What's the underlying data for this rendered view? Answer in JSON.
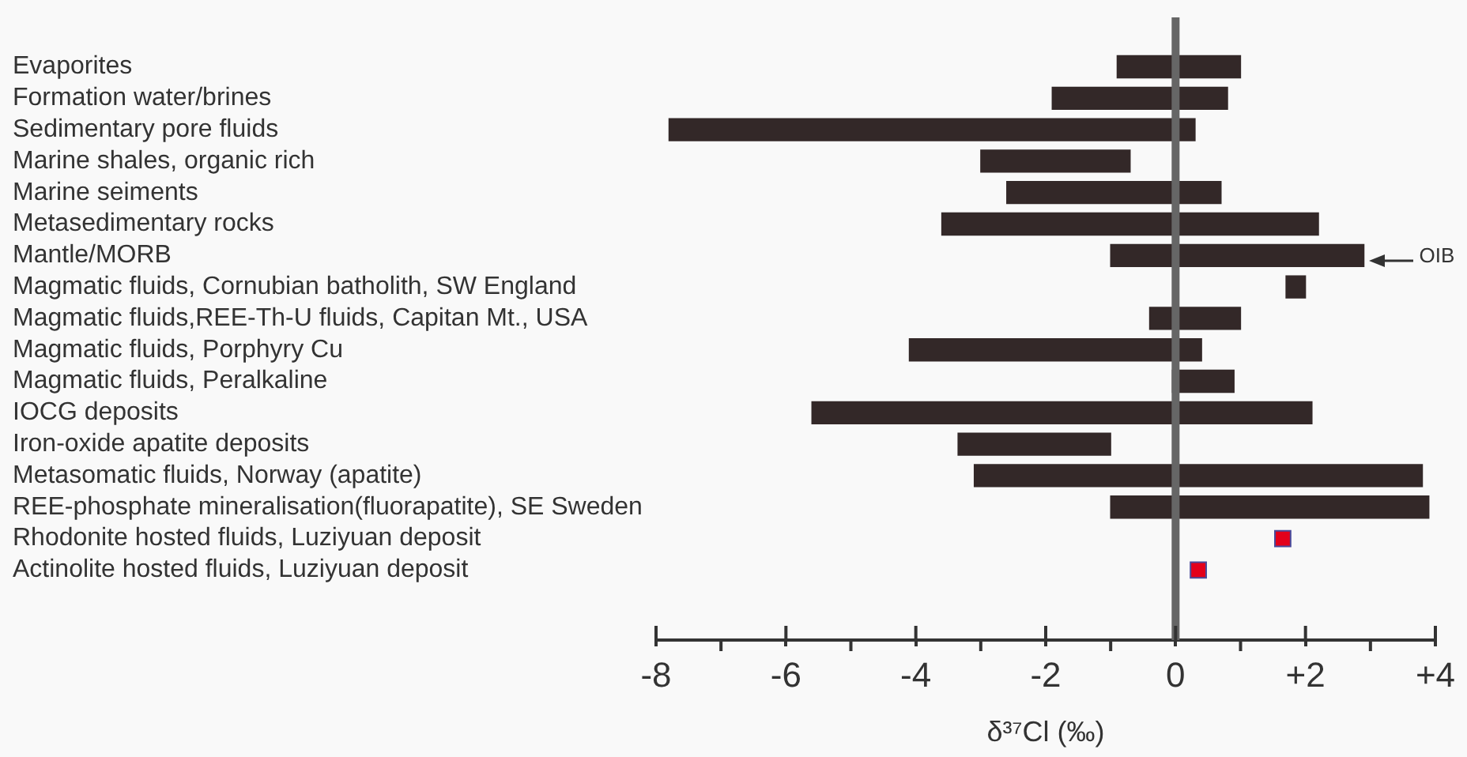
{
  "chart_data": {
    "type": "bar",
    "orientation": "horizontal",
    "xlabel": "δ³⁷Cl (‰)",
    "categories": [
      "Evaporites",
      "Formation water/brines",
      "Sedimentary pore fluids",
      "Marine shales, organic rich",
      "Marine seiments",
      "Metasedimentary rocks",
      "Mantle/MORB",
      "Magmatic fluids, Cornubian batholith, SW England",
      "Magmatic fluids,REE-Th-U fluids, Capitan Mt., USA",
      "Magmatic fluids, Porphyry Cu",
      "Magmatic fluids, Peralkaline",
      "IOCG deposits",
      "Iron-oxide apatite deposits",
      "Metasomatic fluids, Norway (apatite)",
      "REE-phosphate mineralisation(fluorapatite), SE Sweden",
      "Rhodonite hosted fluids, Luziyuan deposit",
      "Actinolite hosted fluids, Luziyuan deposit"
    ],
    "series": [
      {
        "color": "#332828",
        "base": [
          -0.9,
          -1.9,
          -7.8,
          -3.0,
          -2.6,
          -3.6,
          -1.0,
          1.7,
          -0.4,
          -4.1,
          -0.05,
          -5.6,
          -3.35,
          -3.1,
          -1.0,
          null,
          null
        ],
        "values": [
          1.9,
          2.7,
          8.1,
          2.3,
          3.3,
          5.8,
          3.9,
          0.3,
          1.4,
          4.5,
          0.95,
          7.7,
          2.35,
          6.9,
          4.9,
          null,
          null
        ]
      },
      {
        "type": "scatter",
        "color": "#e3001b",
        "marker": "square",
        "values": [
          null,
          null,
          null,
          null,
          null,
          null,
          null,
          null,
          null,
          null,
          null,
          null,
          null,
          null,
          null,
          1.65,
          0.35
        ]
      }
    ],
    "xlim": [
      -8,
      4
    ],
    "xticks": [
      -8,
      -6,
      -4,
      -2,
      0,
      {
        "value": 2,
        "label": "+2"
      },
      {
        "value": 4,
        "label": "+4"
      }
    ],
    "ref_lines": [
      {
        "axis": "x",
        "value": 0,
        "color": "#666666"
      }
    ],
    "annotations": [
      {
        "text": "OIB",
        "x": 2.9,
        "y": "Mantle/MORB"
      }
    ],
    "grid": false,
    "legend": false
  }
}
